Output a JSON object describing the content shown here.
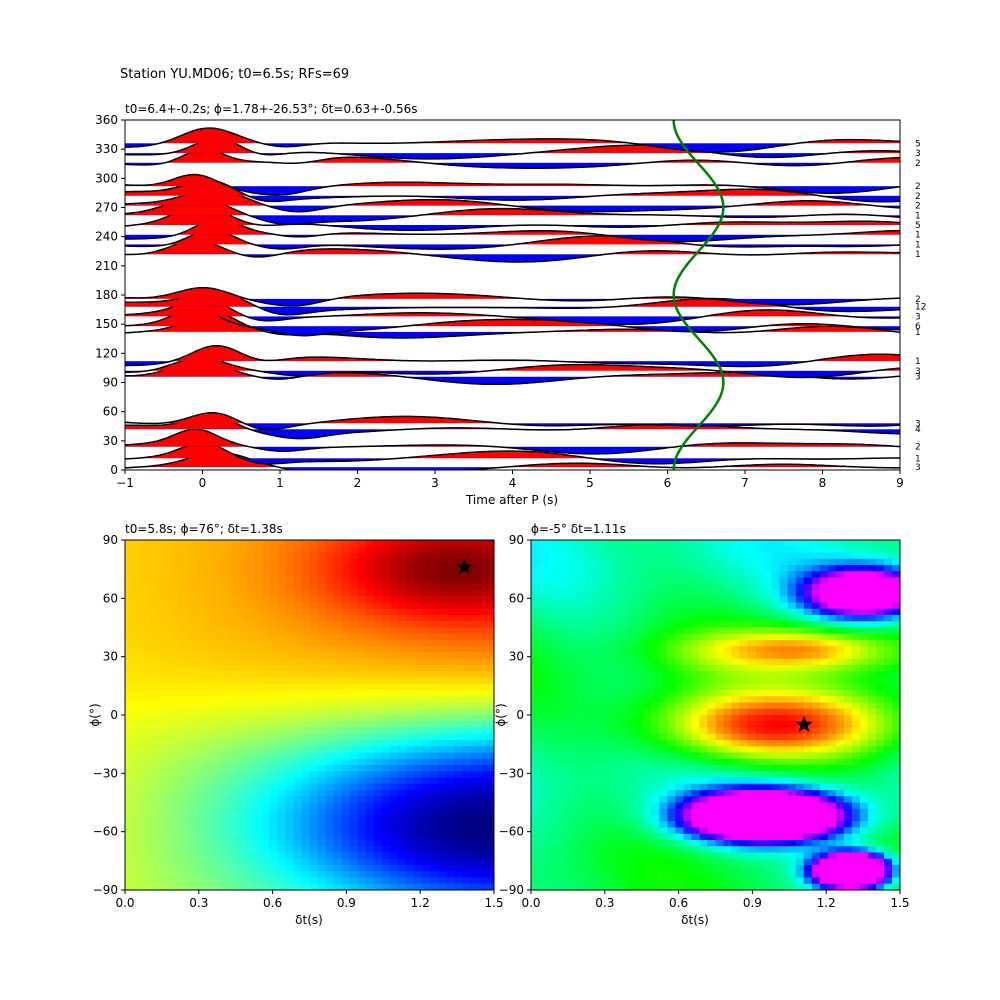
{
  "suptitle": "Station YU.MD06; t0=6.5s; RFs=69",
  "chart_data": [
    {
      "type": "line",
      "name": "receiver-function-gather",
      "title": "t0=6.4+-0.2s; ϕ=1.78+-26.53°; δt=0.63+-0.56s",
      "xlabel": "Time after P (s)",
      "ylabel": "",
      "xlim": [
        -1,
        9
      ],
      "ylim": [
        0,
        360
      ],
      "xticks": [
        "−1",
        "0",
        "1",
        "2",
        "3",
        "4",
        "5",
        "6",
        "7",
        "8",
        "9"
      ],
      "yticks": [
        "0",
        "30",
        "60",
        "90",
        "120",
        "150",
        "180",
        "210",
        "240",
        "270",
        "300",
        "330",
        "360"
      ],
      "fill_colors": {
        "positive": "#ff0000",
        "negative": "#0000ff"
      },
      "trace_color": "#000000",
      "traces": [
        {
          "baz": 3,
          "amp": 0.45,
          "count": "3"
        },
        {
          "baz": 12,
          "amp": 0.55,
          "count": "1"
        },
        {
          "baz": 24,
          "amp": 0.55,
          "count": "2"
        },
        {
          "baz": 42,
          "amp": 0.55,
          "count": "4"
        },
        {
          "baz": 48,
          "amp": 0.6,
          "count": "3"
        },
        {
          "baz": 96,
          "amp": 0.6,
          "count": "3"
        },
        {
          "baz": 102,
          "amp": 0.6,
          "count": "3"
        },
        {
          "baz": 112,
          "amp": 0.6,
          "count": "1"
        },
        {
          "baz": 142,
          "amp": 0.6,
          "count": "1"
        },
        {
          "baz": 148,
          "amp": 0.6,
          "count": "6"
        },
        {
          "baz": 158,
          "amp": 0.6,
          "count": "3"
        },
        {
          "baz": 168,
          "amp": 0.6,
          "count": "12"
        },
        {
          "baz": 176,
          "amp": 0.6,
          "count": "2"
        },
        {
          "baz": 222,
          "amp": 0.6,
          "count": "1"
        },
        {
          "baz": 232,
          "amp": 0.6,
          "count": "1"
        },
        {
          "baz": 242,
          "amp": 0.6,
          "count": "1"
        },
        {
          "baz": 252,
          "amp": 0.6,
          "count": "5"
        },
        {
          "baz": 262,
          "amp": 0.6,
          "count": "1"
        },
        {
          "baz": 272,
          "amp": 0.6,
          "count": "2"
        },
        {
          "baz": 282,
          "amp": 0.6,
          "count": "2"
        },
        {
          "baz": 292,
          "amp": 0.6,
          "count": "2"
        },
        {
          "baz": 316,
          "amp": 0.6,
          "count": "2"
        },
        {
          "baz": 326,
          "amp": 0.6,
          "count": "3"
        },
        {
          "baz": 336,
          "amp": 0.6,
          "count": "5"
        }
      ],
      "moveout_curve": {
        "color": "#008000",
        "description": "predicted arrival time vs back-azimuth",
        "mean_time": 6.4,
        "amplitude": 0.32,
        "points": [
          [
            6.1,
            0
          ],
          [
            6.4,
            45
          ],
          [
            6.7,
            90
          ],
          [
            6.4,
            135
          ],
          [
            6.1,
            180
          ],
          [
            6.4,
            225
          ],
          [
            6.7,
            270
          ],
          [
            6.4,
            315
          ],
          [
            6.1,
            360
          ]
        ]
      }
    },
    {
      "type": "heatmap",
      "name": "transverse-energy-grid",
      "title": "t0=5.8s; ϕ=76°; δt=1.38s",
      "xlabel": "δt(s)",
      "ylabel": "ϕ(°)",
      "xlim": [
        0,
        1.5
      ],
      "ylim": [
        -90,
        90
      ],
      "xticks": [
        "0.0",
        "0.3",
        "0.6",
        "0.9",
        "1.2",
        "1.5"
      ],
      "yticks": [
        "−90",
        "−60",
        "−30",
        "0",
        "30",
        "60",
        "90"
      ],
      "colormap": "jet",
      "optimum": {
        "dt": 1.38,
        "phi": 76
      },
      "features": [
        {
          "dt": 1.35,
          "phi": 75,
          "level": 1.0,
          "sx": 0.35,
          "sy": 18
        },
        {
          "dt": 1.5,
          "phi": -58,
          "level": 0.0,
          "sx": 0.5,
          "sy": 25
        }
      ]
    },
    {
      "type": "heatmap",
      "name": "stacked-energy-grid",
      "title": "ϕ=-5° δt=1.11s",
      "xlabel": "δt(s)",
      "ylabel": "ϕ(°)",
      "xlim": [
        0,
        1.5
      ],
      "ylim": [
        -90,
        90
      ],
      "xticks": [
        "0.0",
        "0.3",
        "0.6",
        "0.9",
        "1.2",
        "1.5"
      ],
      "yticks": [
        "−90",
        "−60",
        "−30",
        "0",
        "30",
        "60",
        "90"
      ],
      "colormap": "hsv",
      "optimum": {
        "dt": 1.11,
        "phi": -5
      },
      "features": [
        {
          "dt": 1.0,
          "phi": -5,
          "level": 1.0,
          "sx": 0.35,
          "sy": 14
        },
        {
          "dt": 1.05,
          "phi": 33,
          "level": 0.9,
          "sx": 0.3,
          "sy": 8
        },
        {
          "dt": 0.95,
          "phi": -52,
          "level": -1.0,
          "sx": 0.2,
          "sy": 8
        },
        {
          "dt": 1.3,
          "phi": -80,
          "level": -0.9,
          "sx": 0.1,
          "sy": 6
        },
        {
          "dt": 1.35,
          "phi": 63,
          "level": -0.5,
          "sx": 0.15,
          "sy": 8
        }
      ]
    }
  ]
}
